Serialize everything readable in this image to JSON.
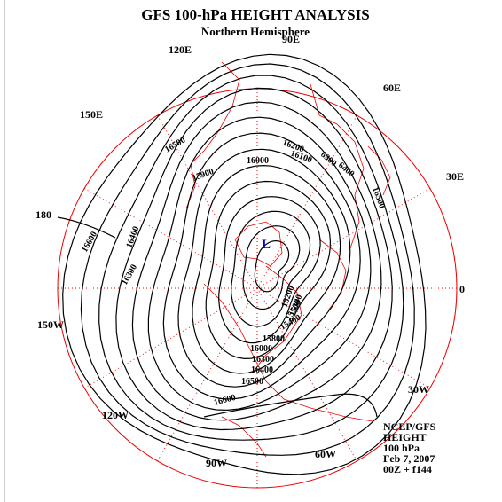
{
  "header": {
    "title": "GFS 100-hPa HEIGHT ANALYSIS",
    "subtitle": "Northern Hemisphere"
  },
  "longitude_labels": [
    "0",
    "30E",
    "60E",
    "90E",
    "120E",
    "150E",
    "180",
    "150W",
    "120W",
    "90W",
    "60W",
    "30W"
  ],
  "contour_labels": [
    "16500",
    "16000",
    "15900",
    "16200",
    "16100",
    "6300",
    "6400",
    "16500",
    "16600",
    "16400",
    "16300",
    "15200",
    "15300",
    "15400",
    "15500",
    "15800",
    "16000",
    "16300",
    "16400",
    "16500",
    "16600"
  ],
  "low_marker": "L",
  "info": [
    "NCEP/GFS",
    "HEIGHT",
    "100 hPa",
    "Feb 7, 2007",
    "00Z + f144"
  ]
}
